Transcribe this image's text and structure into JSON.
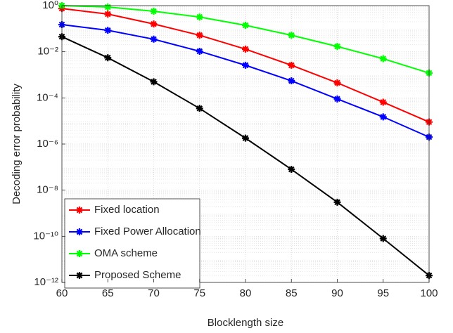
{
  "chart_data": {
    "type": "line",
    "y_scale": "log",
    "grid": true,
    "legend_position": "lower left",
    "xlabel": "Blocklength size",
    "ylabel": "Decoding error probability",
    "x": [
      60,
      65,
      70,
      75,
      80,
      85,
      90,
      95,
      100
    ],
    "xlim": [
      60,
      100
    ],
    "xticks": [
      60,
      65,
      70,
      75,
      80,
      85,
      90,
      95,
      100
    ],
    "ylim": [
      1e-12,
      1
    ],
    "yticks": [
      {
        "value": 1,
        "label": "10⁰"
      },
      {
        "value": 0.01,
        "label": "10⁻²"
      },
      {
        "value": 0.0001,
        "label": "10⁻⁴"
      },
      {
        "value": 1e-06,
        "label": "10⁻⁶"
      },
      {
        "value": 1e-08,
        "label": "10⁻⁸"
      },
      {
        "value": 1e-10,
        "label": "10⁻¹⁰"
      },
      {
        "value": 1e-12,
        "label": "10⁻¹²"
      }
    ],
    "series": [
      {
        "name": "Fixed location",
        "color": "#ff0000",
        "values": [
          0.75,
          0.43,
          0.16,
          0.052,
          0.013,
          0.0026,
          0.00045,
          6.5e-05,
          9e-06
        ]
      },
      {
        "name": "Fixed Power Allocation",
        "color": "#0000ff",
        "values": [
          0.15,
          0.085,
          0.035,
          0.0105,
          0.0026,
          0.00055,
          9e-05,
          1.5e-05,
          2e-06
        ]
      },
      {
        "name": "OMA scheme",
        "color": "#00ff00",
        "values": [
          1.0,
          0.87,
          0.57,
          0.32,
          0.14,
          0.052,
          0.017,
          0.005,
          0.0012
        ]
      },
      {
        "name": "Proposed Scheme",
        "color": "#000000",
        "values": [
          0.045,
          0.0055,
          0.0005,
          3.5e-05,
          1.8e-06,
          8e-08,
          3e-09,
          8e-11,
          2e-12
        ]
      }
    ]
  }
}
